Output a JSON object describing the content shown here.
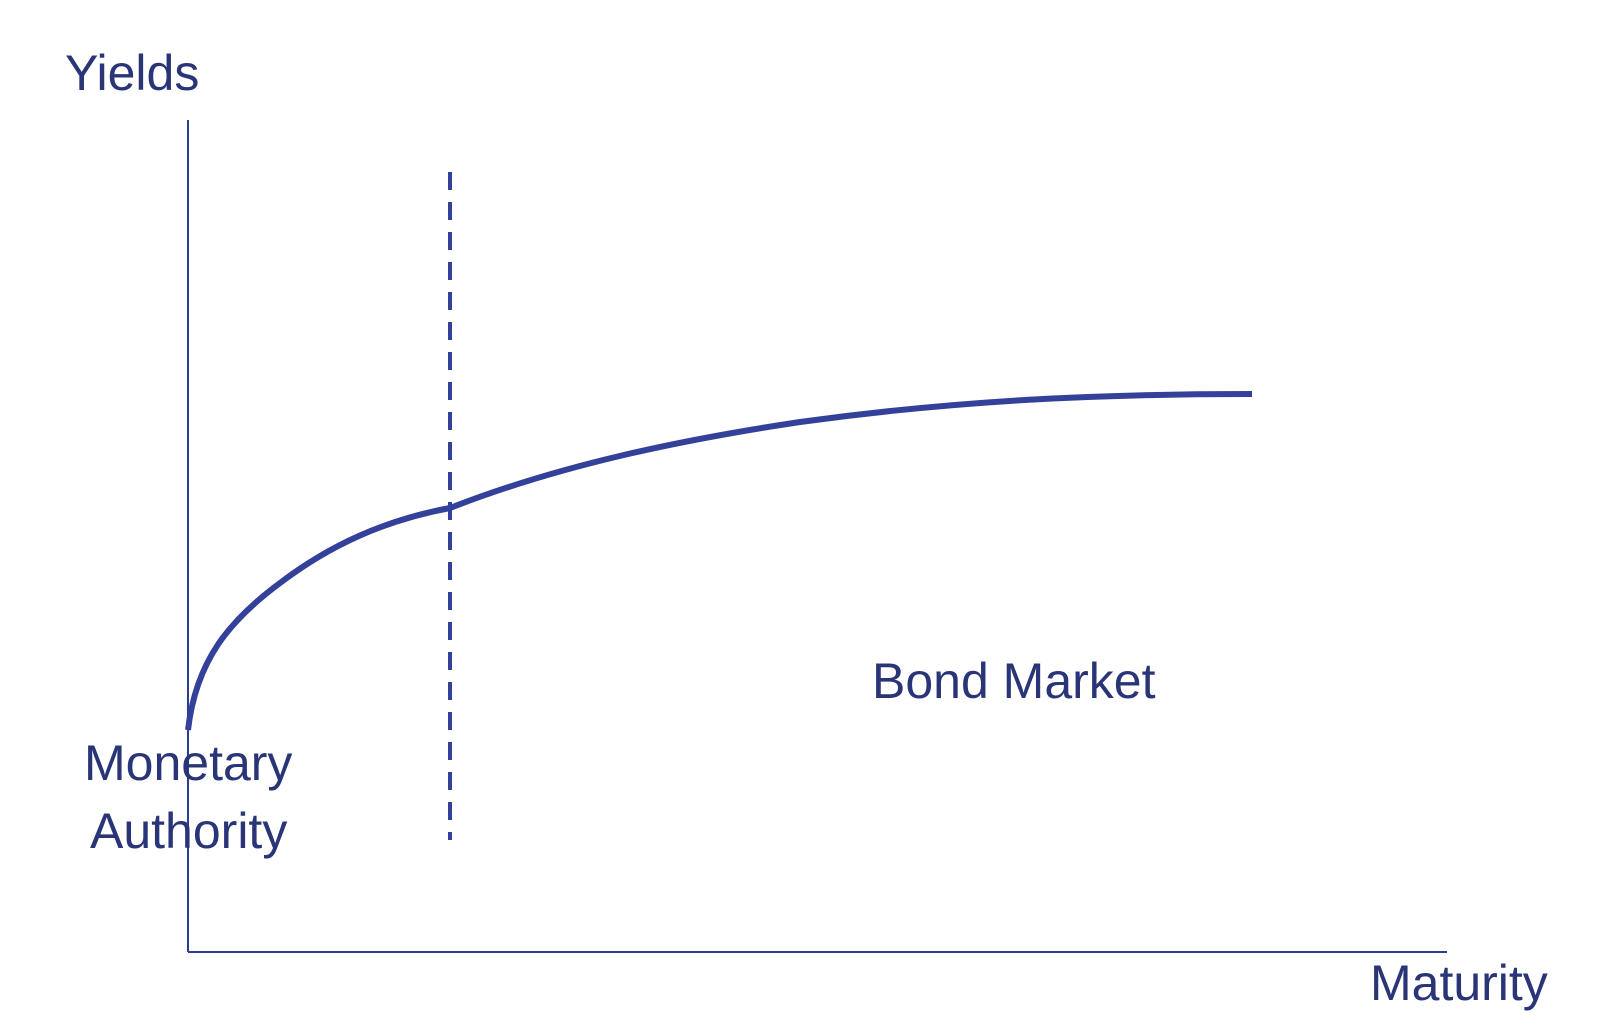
{
  "colors": {
    "text": "#2a3577",
    "axis": "#2d3c8c",
    "curve": "#33419a",
    "divider": "#33419a",
    "background": "#ffffff"
  },
  "axes": {
    "y_label": "Yields",
    "x_label": "Maturity"
  },
  "regions": {
    "left_label_line1": "Monetary",
    "left_label_line2": "Authority",
    "right_label": "Bond Market"
  },
  "curve": {
    "description_shape": "concave rising yield curve",
    "start_level": "low",
    "end_level": "flattening high"
  }
}
